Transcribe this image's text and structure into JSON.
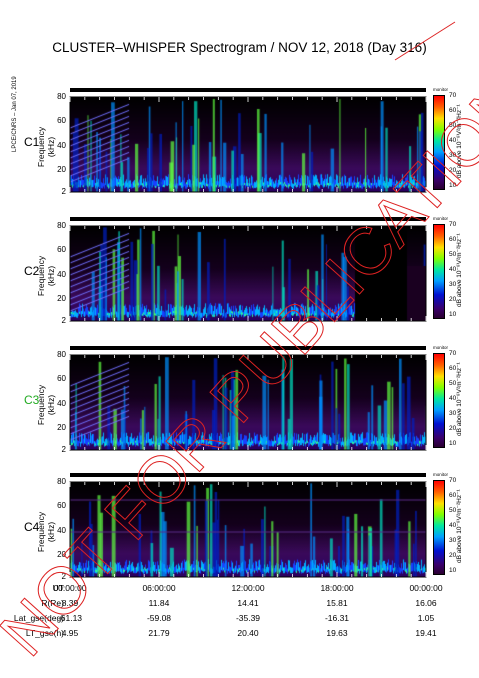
{
  "title": "CLUSTER–WHISPER Spectrogram / NOV 12, 2018 (Day 316)",
  "credit": "LPCE/CNRS – Jan 07, 2019",
  "watermark": "NOT FOR PUBLICATION",
  "colors": {
    "watermark": "#dd2222",
    "c3_label": "#22aa22"
  },
  "chart_data": {
    "type": "heatmap",
    "panels": [
      {
        "name": "C1",
        "ylabel": "Frequency (kHz)",
        "yticks": [
          2,
          20,
          40,
          60,
          80
        ],
        "ylim": [
          2,
          80
        ]
      },
      {
        "name": "C2",
        "ylabel": "Frequency (kHz)",
        "yticks": [
          2,
          20,
          40,
          60,
          80
        ],
        "ylim": [
          2,
          80
        ]
      },
      {
        "name": "C3",
        "ylabel": "Frequency (kHz)",
        "yticks": [
          2,
          20,
          40,
          60,
          80
        ],
        "ylim": [
          2,
          80
        ]
      },
      {
        "name": "C4",
        "ylabel": "Frequency (kHz)",
        "yticks": [
          2,
          20,
          40,
          60,
          80
        ],
        "ylim": [
          2,
          80
        ]
      }
    ],
    "colorbar": {
      "label": "dB above 10⁻⁸V²m⁻²Hz⁻¹",
      "ticks": [
        10,
        20,
        30,
        40,
        50,
        60,
        70
      ],
      "range": [
        10,
        70
      ],
      "top_label": "monitor"
    },
    "x_ticks": [
      "00:00:00",
      "06:00:00",
      "12:00:00",
      "18:00:00",
      "00:00:00"
    ],
    "ephemeris": [
      {
        "label": "UT",
        "values": [
          "00:00:00",
          "06:00:00",
          "12:00:00",
          "18:00:00",
          "00:00:00"
        ]
      },
      {
        "label": "R(Re)",
        "values": [
          "8.39",
          "11.84",
          "14.41",
          "15.81",
          "16.06"
        ]
      },
      {
        "label": "Lat_gse(deg)",
        "values": [
          "-61.13",
          "-59.08",
          "-35.39",
          "-16.31",
          "1.05"
        ]
      },
      {
        "label": "LT_gse(h)",
        "values": [
          "4.95",
          "21.79",
          "20.40",
          "19.63",
          "19.41"
        ]
      }
    ]
  }
}
